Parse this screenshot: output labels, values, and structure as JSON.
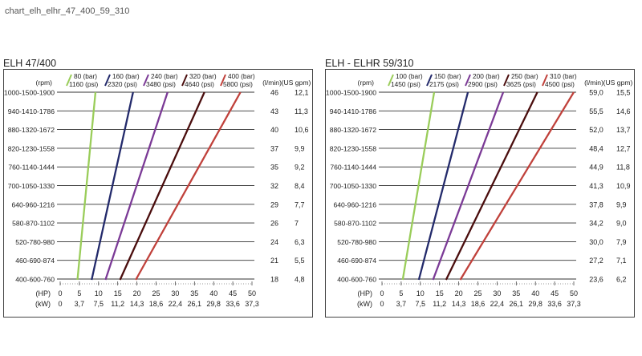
{
  "file_label": "chart_elh_elhr_47_400_59_310",
  "chart_data": [
    {
      "type": "line",
      "title": "ELH 47/400",
      "rpm_header": "(rpm)",
      "flow_header": "(l/min)",
      "gpm_header": "(US gpm)",
      "hp_label": "(HP)",
      "kw_label": "(kW)",
      "rows": [
        {
          "rpm": "1000-1500-1900",
          "lmin": "46",
          "gpm": "12,1"
        },
        {
          "rpm": "940-1410-1786",
          "lmin": "43",
          "gpm": "11,3"
        },
        {
          "rpm": "880-1320-1672",
          "lmin": "40",
          "gpm": "10,6"
        },
        {
          "rpm": "820-1230-1558",
          "lmin": "37",
          "gpm": "9,9"
        },
        {
          "rpm": "760-1140-1444",
          "lmin": "35",
          "gpm": "9,2"
        },
        {
          "rpm": "700-1050-1330",
          "lmin": "32",
          "gpm": "8,4"
        },
        {
          "rpm": "640-960-1216",
          "lmin": "29",
          "gpm": "7,7"
        },
        {
          "rpm": "580-870-1102",
          "lmin": "26",
          "gpm": "7"
        },
        {
          "rpm": "520-780-980",
          "lmin": "24",
          "gpm": "6,3"
        },
        {
          "rpm": "460-690-874",
          "lmin": "21",
          "gpm": "5,5"
        },
        {
          "rpm": "400-600-760",
          "lmin": "18",
          "gpm": "4,8"
        }
      ],
      "hp_ticks": [
        "0",
        "5",
        "10",
        "15",
        "20",
        "25",
        "30",
        "35",
        "40",
        "45",
        "50"
      ],
      "kw_ticks": [
        "0",
        "3,7",
        "7,5",
        "11,2",
        "14,3",
        "18,6",
        "22,4",
        "26,1",
        "29,8",
        "33,6",
        "37,3"
      ],
      "xlim": [
        0,
        50
      ],
      "series": [
        {
          "bar": "80 (bar)",
          "psi": "1160 (psi)",
          "color": "#9acd5a",
          "hp_low": 4.5,
          "hp_high": 9.2
        },
        {
          "bar": "160 (bar)",
          "psi": "2320 (psi)",
          "color": "#232a6b",
          "hp_low": 8.2,
          "hp_high": 19.0
        },
        {
          "bar": "240 (bar)",
          "psi": "3480 (psi)",
          "color": "#7b3a96",
          "hp_low": 11.8,
          "hp_high": 28.0
        },
        {
          "bar": "320 (bar)",
          "psi": "4640 (psi)",
          "color": "#4a0d0d",
          "hp_low": 15.6,
          "hp_high": 37.6
        },
        {
          "bar": "400 (bar)",
          "psi": "5800 (psi)",
          "color": "#c0413b",
          "hp_low": 19.7,
          "hp_high": 47.0
        }
      ]
    },
    {
      "type": "line",
      "title": "ELH - ELHR 59/310",
      "rpm_header": "(rpm)",
      "flow_header": "(l/min)",
      "gpm_header": "(US gpm)",
      "hp_label": "(HP)",
      "kw_label": "(kW)",
      "rows": [
        {
          "rpm": "1000-1500-1900",
          "lmin": "59,0",
          "gpm": "15,5"
        },
        {
          "rpm": "940-1410-1786",
          "lmin": "55,5",
          "gpm": "14,6"
        },
        {
          "rpm": "880-1320-1672",
          "lmin": "52,0",
          "gpm": "13,7"
        },
        {
          "rpm": "820-1230-1558",
          "lmin": "48,4",
          "gpm": "12,7"
        },
        {
          "rpm": "760-1140-1444",
          "lmin": "44,9",
          "gpm": "11,8"
        },
        {
          "rpm": "700-1050-1330",
          "lmin": "41,3",
          "gpm": "10,9"
        },
        {
          "rpm": "640-960-1216",
          "lmin": "37,8",
          "gpm": "9,9"
        },
        {
          "rpm": "580-870-1102",
          "lmin": "34,2",
          "gpm": "9,0"
        },
        {
          "rpm": "520-780-980",
          "lmin": "30,0",
          "gpm": "7,9"
        },
        {
          "rpm": "460-690-874",
          "lmin": "27,2",
          "gpm": "7,1"
        },
        {
          "rpm": "400-600-760",
          "lmin": "23,6",
          "gpm": "6,2"
        }
      ],
      "hp_ticks": [
        "0",
        "5",
        "10",
        "15",
        "20",
        "25",
        "30",
        "35",
        "40",
        "45",
        "50"
      ],
      "kw_ticks": [
        "0",
        "3,7",
        "7,5",
        "11,2",
        "14,3",
        "18,6",
        "22,4",
        "26,1",
        "29,8",
        "33,6",
        "37,3"
      ],
      "xlim": [
        0,
        50
      ],
      "series": [
        {
          "bar": "100 (bar)",
          "psi": "1450 (psi)",
          "color": "#9acd5a",
          "hp_low": 5.4,
          "hp_high": 13.6
        },
        {
          "bar": "150 (bar)",
          "psi": "2175 (psi)",
          "color": "#232a6b",
          "hp_low": 9.6,
          "hp_high": 22.4
        },
        {
          "bar": "200 (bar)",
          "psi": "2900 (psi)",
          "color": "#7b3a96",
          "hp_low": 13.3,
          "hp_high": 31.6
        },
        {
          "bar": "250 (bar)",
          "psi": "3625 (psi)",
          "color": "#4a0d0d",
          "hp_low": 16.7,
          "hp_high": 40.5
        },
        {
          "bar": "310 (bar)",
          "psi": "4500 (psi)",
          "color": "#c0413b",
          "hp_low": 20.4,
          "hp_high": 50.0
        }
      ]
    }
  ]
}
